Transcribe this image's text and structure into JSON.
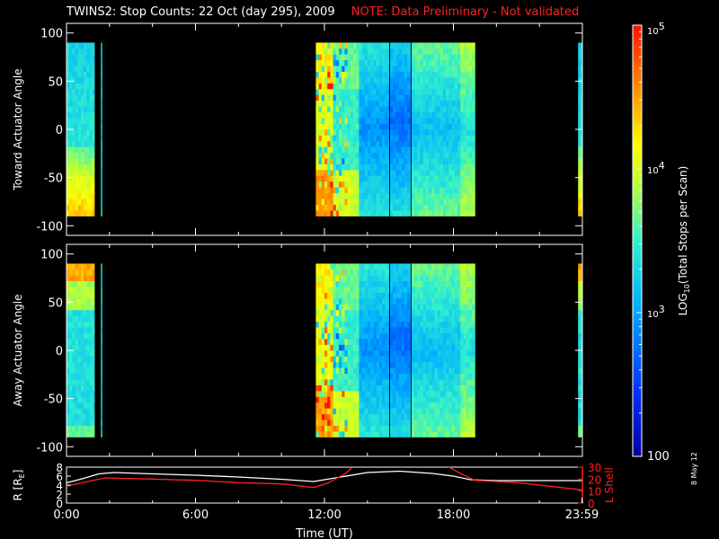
{
  "title": {
    "main": "TWINS2: Stop Counts: 22 Oct (day 295), 2009",
    "note": "NOTE: Data Preliminary - Not validated"
  },
  "footer_stamp": "8 May 12",
  "colors": {
    "background": "#000000",
    "note": "#ff2020",
    "r_line": "#ffffff",
    "lshell_line": "#ff2020",
    "frame": "#ffffff"
  },
  "chart_data": [
    {
      "type": "heatmap",
      "name": "toward",
      "ylabel": "Toward Actuator Angle",
      "ylim": [
        -110,
        110
      ],
      "yticks": [
        "100",
        "50",
        "0",
        "-50",
        "-100"
      ],
      "ytick_values": [
        100,
        50,
        0,
        -50,
        -100
      ],
      "xlim_hours": [
        0,
        24
      ],
      "angle_range": [
        -90,
        90
      ],
      "blocks": [
        {
          "start": 0.0,
          "end": 1.3,
          "style": "low-mixed"
        },
        {
          "start": 1.6,
          "end": 1.65,
          "style": "line"
        },
        {
          "start": 11.6,
          "end": 15.0,
          "style": "storm"
        },
        {
          "start": 15.05,
          "end": 16.0,
          "style": "storm-center"
        },
        {
          "start": 16.05,
          "end": 19.0,
          "style": "storm-tail"
        },
        {
          "start": 23.8,
          "end": 24.0,
          "style": "low-mixed"
        }
      ]
    },
    {
      "type": "heatmap",
      "name": "away",
      "ylabel": "Away Actuator Angle",
      "ylim": [
        -110,
        110
      ],
      "yticks": [
        "100",
        "50",
        "0",
        "-50",
        "-100"
      ],
      "ytick_values": [
        100,
        50,
        0,
        -50,
        -100
      ],
      "xlim_hours": [
        0,
        24
      ],
      "angle_range": [
        -90,
        90
      ],
      "blocks": [
        {
          "start": 0.0,
          "end": 1.3,
          "style": "high-top"
        },
        {
          "start": 1.6,
          "end": 1.65,
          "style": "line"
        },
        {
          "start": 11.6,
          "end": 15.0,
          "style": "storm"
        },
        {
          "start": 15.05,
          "end": 16.0,
          "style": "storm-center"
        },
        {
          "start": 16.05,
          "end": 19.0,
          "style": "storm-tail"
        },
        {
          "start": 23.8,
          "end": 24.0,
          "style": "high-top"
        }
      ]
    },
    {
      "type": "line",
      "name": "orbit",
      "ylabel_left": "R [R",
      "ylabel_left_sub": "E",
      "ylabel_left_end": "]",
      "ylabel_right": "L Shell",
      "xlabel": "Time (UT)",
      "xticks": [
        "0:00",
        "6:00",
        "12:00",
        "18:00",
        "23:59"
      ],
      "xtick_values": [
        0,
        6,
        12,
        18,
        23.98
      ],
      "left_ylim": [
        0,
        8
      ],
      "left_yticks": [
        "8",
        "6",
        "4",
        "2",
        "0"
      ],
      "left_ytick_values": [
        8,
        6,
        4,
        2,
        0
      ],
      "right_ylim": [
        0,
        30
      ],
      "right_yticks": [
        "30",
        "20",
        "10",
        "0"
      ],
      "right_ytick_values": [
        30,
        20,
        10,
        0
      ],
      "series": [
        {
          "axis": "left",
          "x": [
            0,
            0.8,
            1.5,
            2.2,
            4,
            6,
            8,
            10,
            11.5,
            12.5,
            14,
            15.5,
            17,
            18,
            18.8,
            20,
            22,
            23.98
          ],
          "y": [
            4.5,
            5.5,
            6.5,
            6.8,
            6.5,
            6.2,
            5.8,
            5.3,
            4.8,
            5.6,
            6.8,
            7.1,
            6.6,
            6.0,
            5.2,
            5.0,
            5.0,
            5.0
          ]
        },
        {
          "axis": "right",
          "x": [
            0,
            1.0,
            1.8,
            4,
            6,
            8,
            10,
            11.5,
            12.2,
            13.0,
            13.3,
            null,
            17.8,
            18.3,
            19.0,
            21,
            23,
            23.98
          ],
          "y": [
            14,
            18,
            21,
            20,
            19,
            17,
            16,
            13,
            17,
            25,
            30,
            null,
            30,
            25,
            19,
            17,
            13,
            11
          ]
        }
      ]
    }
  ],
  "colorbar": {
    "label_prefix": "LOG",
    "label_sub": "10",
    "label_rest": "(Total Stops per Scan)",
    "ticks": [
      {
        "base": "10",
        "exp": "5",
        "value": 100000
      },
      {
        "base": "10",
        "exp": "4",
        "value": 10000
      },
      {
        "base": "10",
        "exp": "3",
        "value": 1000
      },
      {
        "base": "100",
        "exp": "",
        "value": 100
      }
    ],
    "range": [
      100,
      100000
    ]
  }
}
